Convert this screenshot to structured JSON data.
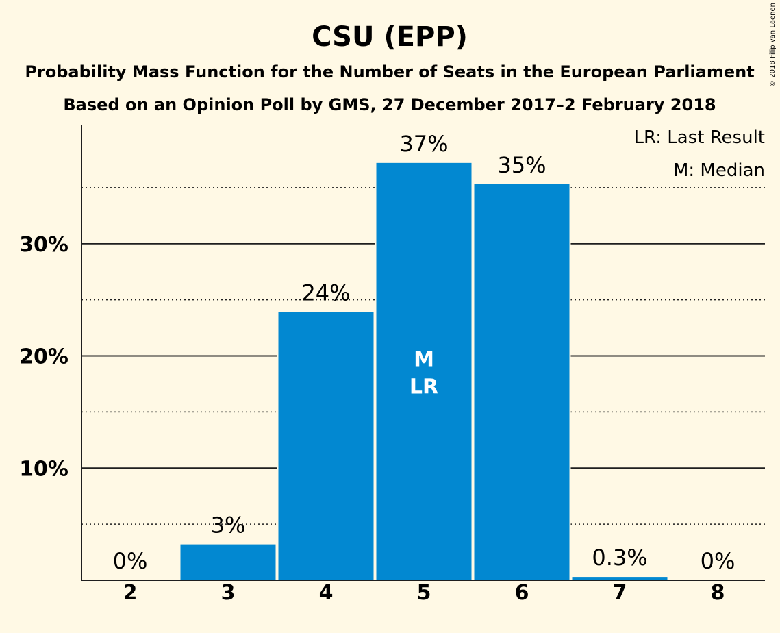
{
  "chart_data": {
    "type": "bar",
    "title": "CSU (EPP)",
    "subtitle": "Probability Mass Function for the Number of Seats in the European Parliament",
    "subtitle2": "Based on an Opinion Poll by GMS, 27 December 2017–2 February 2018",
    "categories": [
      "2",
      "3",
      "4",
      "5",
      "6",
      "7",
      "8"
    ],
    "values": [
      0,
      3.2,
      23.9,
      37.2,
      35.3,
      0.3,
      0
    ],
    "value_labels": [
      "0%",
      "3%",
      "24%",
      "37%",
      "35%",
      "0.3%",
      "0%"
    ],
    "ylim": [
      0,
      40
    ],
    "yticks": [
      10,
      20,
      30
    ],
    "ytick_labels": [
      "10%",
      "20%",
      "30%"
    ],
    "minor_gridlines": [
      5,
      15,
      25,
      35
    ],
    "grid": true,
    "bar_color": "#0288d1",
    "background": "#fff9e5",
    "median_category": "5",
    "last_result_category": "5",
    "bar_markers": [
      "M",
      "LR"
    ],
    "legend": {
      "placement": "top-right",
      "items": [
        "LR: Last Result",
        "M: Median"
      ]
    },
    "copyright": "© 2018 Filip van Laenen"
  }
}
